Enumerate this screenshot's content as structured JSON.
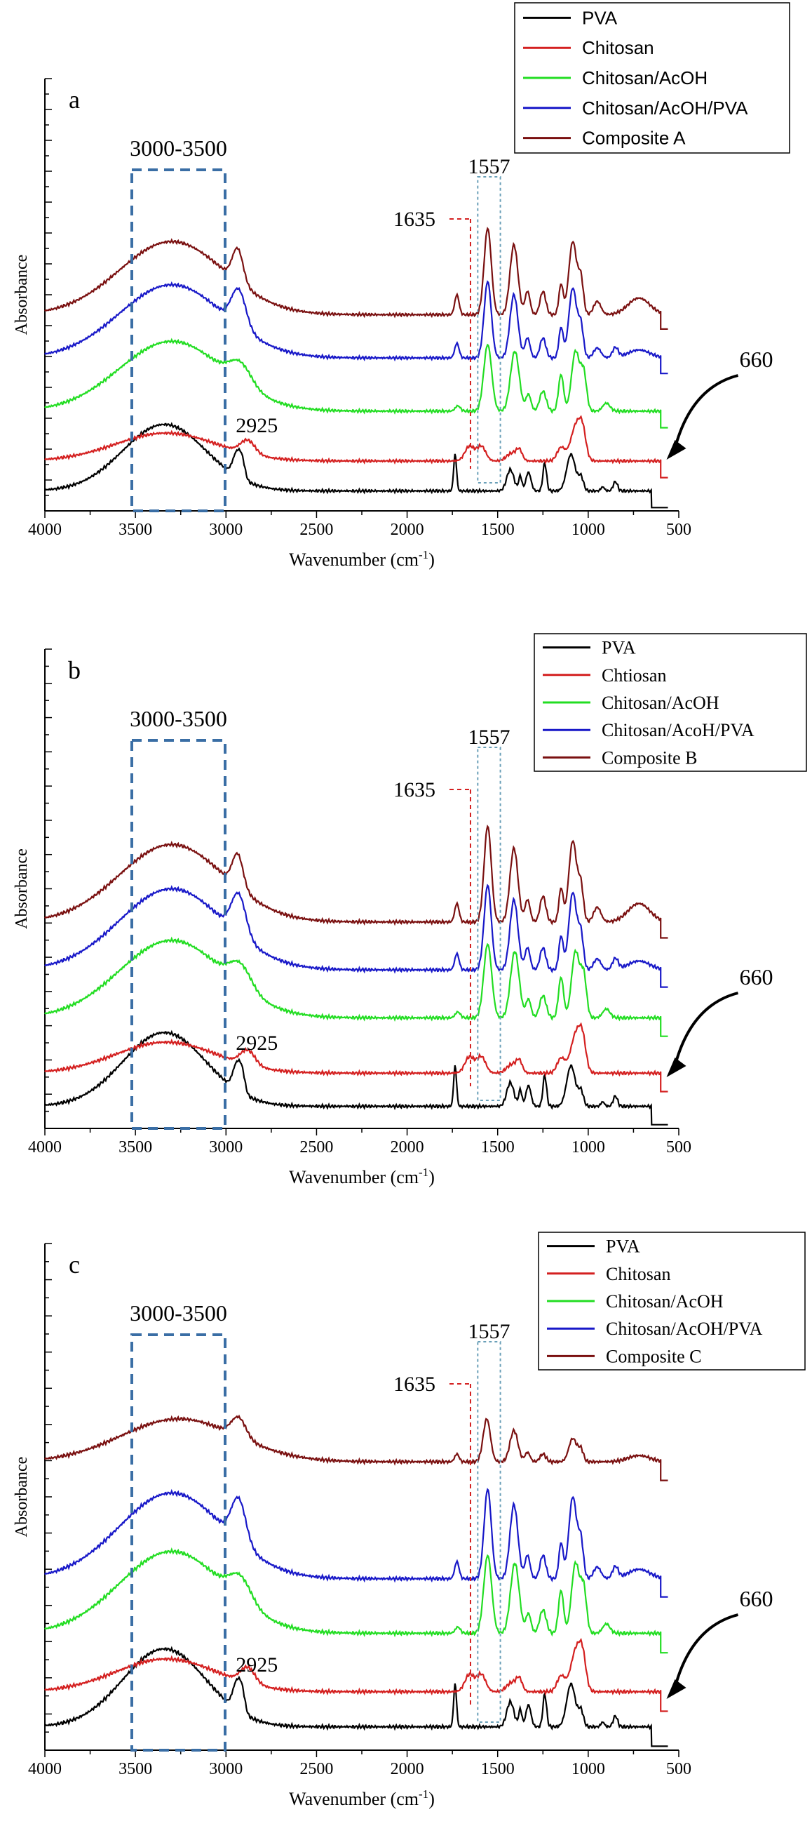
{
  "figure": {
    "panels": [
      {
        "letter": "a",
        "legend_font": "sans",
        "markers": {
          "region": "3000-3500",
          "n1557": "1557",
          "n1635": "1635",
          "n2925": "2925",
          "n660": "660"
        }
      },
      {
        "letter": "b",
        "legend_font": "serif",
        "markers": {
          "region": "3000-3500",
          "n1557": "1557",
          "n1635": "1635",
          "n2925": "2925",
          "n660": "660"
        }
      },
      {
        "letter": "c",
        "legend_font": "serif",
        "markers": {
          "region": "3000-3500",
          "n1557": "1557",
          "n1635": "1635",
          "n2925": "2925",
          "n660": "660"
        }
      }
    ]
  },
  "chart_data": [
    {
      "type": "line",
      "title": "",
      "panel_label": "a",
      "xlabel": "Wavenumber (cm",
      "xlabel_sup": "-1",
      "xlabel_end": ")",
      "ylabel": "Absorbance",
      "xlim": [
        4000,
        500
      ],
      "x_reversed": true,
      "xticks": [
        4000,
        3500,
        3000,
        2500,
        2000,
        1500,
        1000,
        500
      ],
      "ylim": [
        0,
        6.5
      ],
      "grid": false,
      "legend_position": "top-right",
      "series": [
        {
          "name": "PVA",
          "color": "#000000",
          "offset": 0.0,
          "profile": "pva",
          "end_x": 650
        },
        {
          "name": "Chitosan",
          "color": "#d42020",
          "offset": 0.45,
          "profile": "chitosan",
          "end_x": 600
        },
        {
          "name": "Chitosan/AcOH",
          "color": "#22dd22",
          "offset": 1.2,
          "profile": "acoh",
          "end_x": 600
        },
        {
          "name": "Chitosan/AcOH/PVA",
          "color": "#1818c8",
          "offset": 2.0,
          "profile": "acohpva",
          "end_x": 600
        },
        {
          "name": "Composite A",
          "color": "#7a1010",
          "offset": 2.65,
          "profile": "composite_a",
          "end_x": 600
        }
      ],
      "annotations": [
        {
          "text": "3000-3500",
          "x": 3250
        },
        {
          "text": "2925",
          "x": 2925
        },
        {
          "text": "1635",
          "x": 1635
        },
        {
          "text": "1557",
          "x": 1557
        },
        {
          "text": "660",
          "x": 660
        }
      ]
    },
    {
      "type": "line",
      "title": "",
      "panel_label": "b",
      "xlabel": "Wavenumber (cm",
      "xlabel_sup": "-1",
      "xlabel_end": ")",
      "ylabel": "Absorbance",
      "xlim": [
        4000,
        500
      ],
      "x_reversed": true,
      "xticks": [
        4000,
        3500,
        3000,
        2500,
        2000,
        1500,
        1000,
        500
      ],
      "ylim": [
        0,
        6.5
      ],
      "grid": false,
      "legend_position": "top-right",
      "series": [
        {
          "name": "PVA",
          "color": "#000000",
          "offset": 0.0,
          "profile": "pva",
          "end_x": 650
        },
        {
          "name": "Chtiosan",
          "color": "#d42020",
          "offset": 0.45,
          "profile": "chitosan",
          "end_x": 600
        },
        {
          "name": "Chitosan/AcOH",
          "color": "#22dd22",
          "offset": 1.2,
          "profile": "acoh",
          "end_x": 600
        },
        {
          "name": "Chitosan/AcoH/PVA",
          "color": "#1818c8",
          "offset": 1.85,
          "profile": "acohpva",
          "end_x": 600
        },
        {
          "name": "Composite B",
          "color": "#7a1010",
          "offset": 2.5,
          "profile": "composite_b",
          "end_x": 600
        }
      ],
      "annotations": [
        {
          "text": "3000-3500",
          "x": 3250
        },
        {
          "text": "2925",
          "x": 2925
        },
        {
          "text": "1635",
          "x": 1635
        },
        {
          "text": "1557",
          "x": 1557
        },
        {
          "text": "660",
          "x": 660
        }
      ]
    },
    {
      "type": "line",
      "title": "",
      "panel_label": "c",
      "xlabel": "Wavenumber (cm",
      "xlabel_sup": "-1",
      "xlabel_end": ")",
      "ylabel": "Absorbance",
      "xlim": [
        4000,
        500
      ],
      "x_reversed": true,
      "xticks": [
        4000,
        3500,
        3000,
        2500,
        2000,
        1500,
        1000,
        500
      ],
      "ylim": [
        0,
        6.5
      ],
      "grid": false,
      "legend_position": "top-right",
      "series": [
        {
          "name": "PVA",
          "color": "#000000",
          "offset": 0.0,
          "profile": "pva",
          "end_x": 650
        },
        {
          "name": "Chitosan",
          "color": "#d42020",
          "offset": 0.45,
          "profile": "chitosan",
          "end_x": 600
        },
        {
          "name": "Chitosan/AcOH",
          "color": "#22dd22",
          "offset": 1.2,
          "profile": "acoh",
          "end_x": 600
        },
        {
          "name": "Chitosan/AcOH/PVA",
          "color": "#1818c8",
          "offset": 1.9,
          "profile": "acohpva",
          "end_x": 600
        },
        {
          "name": "Composite C",
          "color": "#7a1010",
          "offset": 3.4,
          "profile": "composite_c",
          "end_x": 600
        }
      ],
      "annotations": [
        {
          "text": "3000-3500",
          "x": 3250
        },
        {
          "text": "2925",
          "x": 2925
        },
        {
          "text": "1635",
          "x": 1635
        },
        {
          "text": "1557",
          "x": 1557
        },
        {
          "text": "660",
          "x": 660
        }
      ]
    }
  ]
}
